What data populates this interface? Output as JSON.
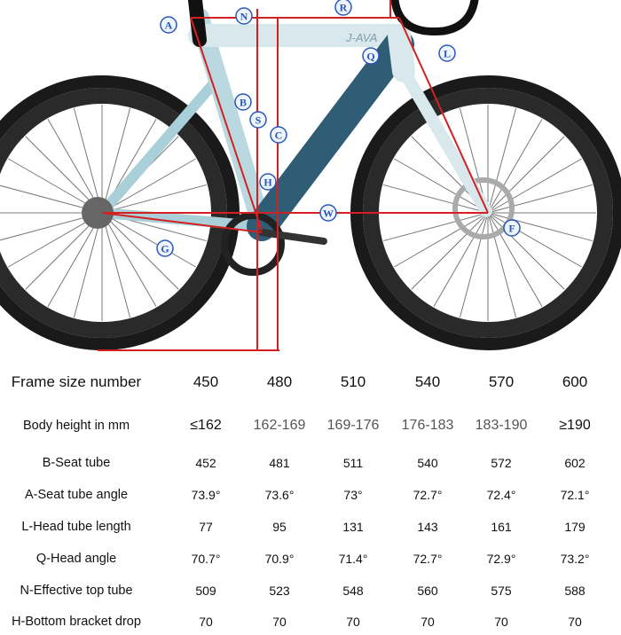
{
  "diagram": {
    "brand_mark": "J-AVA",
    "labels": [
      "A",
      "N",
      "R",
      "Q",
      "L",
      "B",
      "S",
      "C",
      "H",
      "W",
      "F",
      "G"
    ],
    "colors": {
      "measure_line": "#d42020",
      "label_text": "#2a58b8",
      "frame_light": "#d5e6ea",
      "frame_dark": "#2f5d76",
      "tire": "#1a1a1a"
    }
  },
  "table": {
    "header": {
      "label": "Frame size number",
      "values": [
        "450",
        "480",
        "510",
        "540",
        "570",
        "600"
      ]
    },
    "rows": [
      {
        "label": "Body height in mm",
        "values": [
          "≤162",
          "162-169",
          "169-176",
          "176-183",
          "183-190",
          "≥190"
        ]
      },
      {
        "label": "B-Seat tube",
        "values": [
          "452",
          "481",
          "511",
          "540",
          "572",
          "602"
        ]
      },
      {
        "label": "A-Seat tube angle",
        "values": [
          "73.9°",
          "73.6°",
          "73°",
          "72.7°",
          "72.4°",
          "72.1°"
        ]
      },
      {
        "label": "L-Head tube length",
        "values": [
          "77",
          "95",
          "131",
          "143",
          "161",
          "179"
        ]
      },
      {
        "label": "Q-Head angle",
        "values": [
          "70.7°",
          "70.9°",
          "71.4°",
          "72.7°",
          "72.9°",
          "73.2°"
        ]
      },
      {
        "label": "N-Effective top tube",
        "values": [
          "509",
          "523",
          "548",
          "560",
          "575",
          "588"
        ]
      },
      {
        "label": "H-Bottom bracket drop",
        "values": [
          "70",
          "70",
          "70",
          "70",
          "70",
          "70"
        ]
      }
    ]
  }
}
